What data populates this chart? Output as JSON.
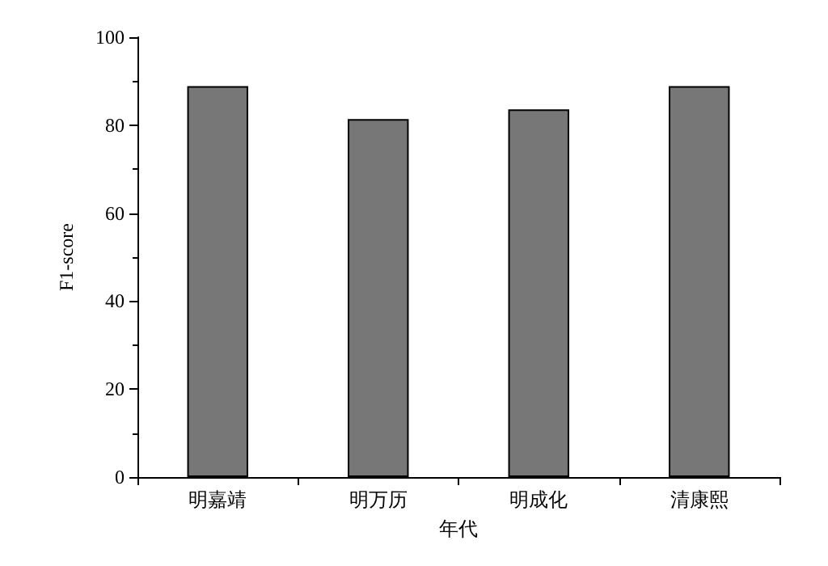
{
  "chart_data": {
    "type": "bar",
    "xlabel": "年代",
    "ylabel": "F1-score",
    "categories": [
      "明嘉靖",
      "明万历",
      "明成化",
      "清康熙"
    ],
    "values": [
      88.9,
      81.4,
      83.6,
      88.9
    ],
    "color": "#777777",
    "ylim": [
      0,
      100
    ],
    "yticks": [
      0,
      20,
      40,
      60,
      80,
      100
    ],
    "grid": false
  }
}
